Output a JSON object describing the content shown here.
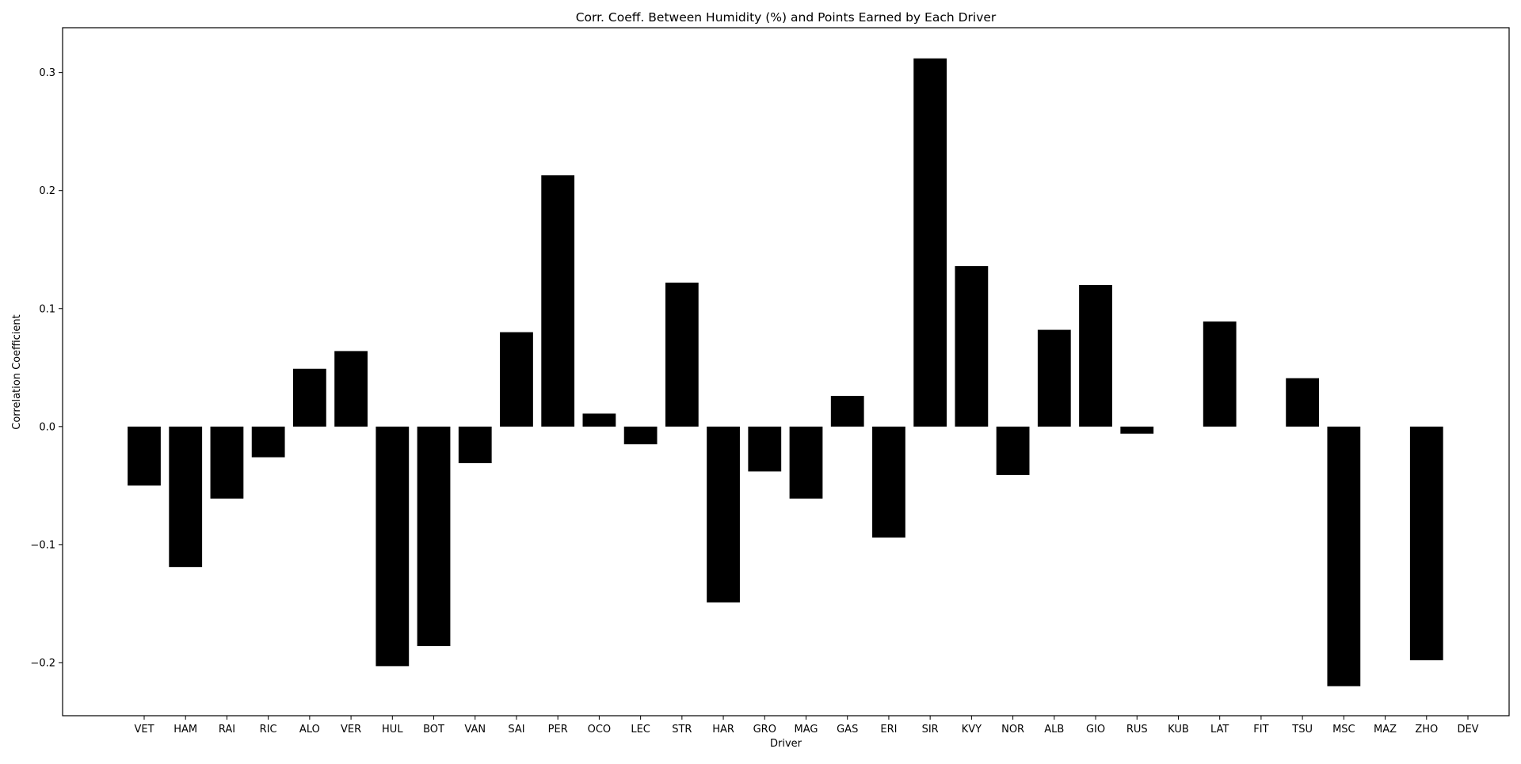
{
  "chart_data": {
    "type": "bar",
    "title": "Corr. Coeff. Between Humidity (%) and Points Earned by Each Driver",
    "xlabel": "Driver",
    "ylabel": "Correlation Coefficient",
    "ylim": [
      -0.245,
      0.338
    ],
    "yticks": [
      -0.2,
      -0.1,
      0.0,
      0.1,
      0.2,
      0.3
    ],
    "ytick_labels": [
      "−0.2",
      "−0.1",
      "0.0",
      "0.1",
      "0.2",
      "0.3"
    ],
    "grid": false,
    "bar_color": "#000000",
    "categories": [
      "VET",
      "HAM",
      "RAI",
      "RIC",
      "ALO",
      "VER",
      "HUL",
      "BOT",
      "VAN",
      "SAI",
      "PER",
      "OCO",
      "LEC",
      "STR",
      "HAR",
      "GRO",
      "MAG",
      "GAS",
      "ERI",
      "SIR",
      "KVY",
      "NOR",
      "ALB",
      "GIO",
      "RUS",
      "KUB",
      "LAT",
      "FIT",
      "TSU",
      "MSC",
      "MAZ",
      "ZHO",
      "DEV"
    ],
    "values": [
      -0.05,
      -0.119,
      -0.061,
      -0.026,
      0.049,
      0.064,
      -0.203,
      -0.186,
      -0.031,
      0.08,
      0.213,
      0.011,
      -0.015,
      0.122,
      -0.149,
      -0.038,
      -0.061,
      0.026,
      -0.094,
      0.312,
      0.136,
      -0.041,
      0.082,
      0.12,
      -0.006,
      null,
      0.089,
      null,
      0.041,
      -0.22,
      null,
      -0.198,
      null
    ]
  }
}
